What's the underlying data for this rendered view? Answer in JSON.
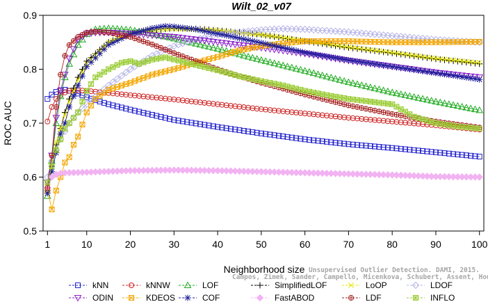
{
  "chart_data": {
    "type": "line",
    "title": "Wilt_02_v07",
    "xlabel": "Neighborhood size",
    "ylabel": "ROC AUC",
    "xlim": [
      0,
      101
    ],
    "ylim": [
      0.5,
      0.9
    ],
    "xticks": [
      1,
      10,
      20,
      30,
      40,
      50,
      60,
      70,
      80,
      90,
      100
    ],
    "yticks": [
      0.5,
      0.6,
      0.7,
      0.8,
      0.9
    ],
    "grid": false,
    "legend_placement": "bottom",
    "watermark": [
      "Campos, Zimek, Sander, Campello, Micenkova, Schubert, Assent, Houle",
      "Unsupervised Outlier Detection. DAMI, 2015."
    ],
    "series": [
      {
        "name": "kNN",
        "color": "#1f1fcc",
        "marker": "square",
        "points": [
          [
            1,
            0.745
          ],
          [
            2,
            0.753
          ],
          [
            3,
            0.758
          ],
          [
            4,
            0.761
          ],
          [
            5,
            0.762
          ],
          [
            6,
            0.76
          ],
          [
            8,
            0.755
          ],
          [
            10,
            0.748
          ],
          [
            15,
            0.735
          ],
          [
            20,
            0.725
          ],
          [
            30,
            0.706
          ],
          [
            40,
            0.693
          ],
          [
            50,
            0.681
          ],
          [
            60,
            0.67
          ],
          [
            70,
            0.661
          ],
          [
            80,
            0.654
          ],
          [
            90,
            0.646
          ],
          [
            100,
            0.638
          ]
        ]
      },
      {
        "name": "kNNW",
        "color": "#cc1f1f",
        "marker": "circle",
        "points": [
          [
            1,
            0.703
          ],
          [
            2,
            0.73
          ],
          [
            3,
            0.745
          ],
          [
            4,
            0.752
          ],
          [
            5,
            0.757
          ],
          [
            6,
            0.76
          ],
          [
            8,
            0.761
          ],
          [
            10,
            0.76
          ],
          [
            15,
            0.756
          ],
          [
            20,
            0.752
          ],
          [
            30,
            0.744
          ],
          [
            40,
            0.735
          ],
          [
            50,
            0.726
          ],
          [
            60,
            0.718
          ],
          [
            70,
            0.71
          ],
          [
            80,
            0.703
          ],
          [
            90,
            0.696
          ],
          [
            100,
            0.688
          ]
        ]
      },
      {
        "name": "LOF",
        "color": "#1faa1f",
        "marker": "triangle-up",
        "points": [
          [
            1,
            0.565
          ],
          [
            2,
            0.63
          ],
          [
            3,
            0.7
          ],
          [
            4,
            0.75
          ],
          [
            5,
            0.785
          ],
          [
            6,
            0.81
          ],
          [
            8,
            0.845
          ],
          [
            10,
            0.865
          ],
          [
            12,
            0.874
          ],
          [
            15,
            0.876
          ],
          [
            20,
            0.873
          ],
          [
            25,
            0.866
          ],
          [
            30,
            0.857
          ],
          [
            40,
            0.838
          ],
          [
            50,
            0.817
          ],
          [
            60,
            0.797
          ],
          [
            70,
            0.776
          ],
          [
            80,
            0.757
          ],
          [
            90,
            0.74
          ],
          [
            100,
            0.724
          ]
        ]
      },
      {
        "name": "SimplifiedLOF",
        "color": "#000000",
        "marker": "plus",
        "points": [
          [
            1,
            0.575
          ],
          [
            2,
            0.62
          ],
          [
            3,
            0.66
          ],
          [
            4,
            0.69
          ],
          [
            5,
            0.72
          ],
          [
            6,
            0.745
          ],
          [
            8,
            0.785
          ],
          [
            10,
            0.815
          ],
          [
            15,
            0.85
          ],
          [
            20,
            0.866
          ],
          [
            25,
            0.873
          ],
          [
            30,
            0.876
          ],
          [
            35,
            0.875
          ],
          [
            40,
            0.872
          ],
          [
            50,
            0.864
          ],
          [
            60,
            0.852
          ],
          [
            70,
            0.84
          ],
          [
            80,
            0.83
          ],
          [
            90,
            0.819
          ],
          [
            100,
            0.81
          ]
        ]
      },
      {
        "name": "LoOP",
        "color": "#e6e600",
        "marker": "cross",
        "points": [
          [
            1,
            0.58
          ],
          [
            2,
            0.63
          ],
          [
            3,
            0.665
          ],
          [
            4,
            0.69
          ],
          [
            6,
            0.74
          ],
          [
            8,
            0.78
          ],
          [
            10,
            0.81
          ],
          [
            15,
            0.85
          ],
          [
            20,
            0.866
          ],
          [
            25,
            0.873
          ],
          [
            30,
            0.875
          ],
          [
            40,
            0.872
          ],
          [
            50,
            0.864
          ],
          [
            60,
            0.853
          ],
          [
            70,
            0.841
          ],
          [
            80,
            0.831
          ],
          [
            90,
            0.82
          ],
          [
            100,
            0.812
          ]
        ]
      },
      {
        "name": "LDOF",
        "color": "#b3b3e6",
        "marker": "diamond",
        "points": [
          [
            1,
            0.6
          ],
          [
            2,
            0.63
          ],
          [
            3,
            0.65
          ],
          [
            4,
            0.67
          ],
          [
            6,
            0.7
          ],
          [
            8,
            0.72
          ],
          [
            10,
            0.735
          ],
          [
            15,
            0.77
          ],
          [
            20,
            0.8
          ],
          [
            25,
            0.825
          ],
          [
            30,
            0.843
          ],
          [
            35,
            0.855
          ],
          [
            40,
            0.864
          ],
          [
            45,
            0.869
          ],
          [
            50,
            0.873
          ],
          [
            55,
            0.875
          ],
          [
            60,
            0.874
          ],
          [
            70,
            0.869
          ],
          [
            80,
            0.862
          ],
          [
            90,
            0.855
          ],
          [
            100,
            0.85
          ]
        ]
      },
      {
        "name": "ODIN",
        "color": "#8a1fcc",
        "marker": "triangle-down",
        "points": [
          [
            1,
            0.59
          ],
          [
            2,
            0.64
          ],
          [
            3,
            0.71
          ],
          [
            4,
            0.76
          ],
          [
            5,
            0.79
          ],
          [
            6,
            0.82
          ],
          [
            8,
            0.855
          ],
          [
            10,
            0.866
          ],
          [
            12,
            0.868
          ],
          [
            15,
            0.868
          ],
          [
            20,
            0.866
          ],
          [
            30,
            0.86
          ],
          [
            40,
            0.85
          ],
          [
            50,
            0.84
          ],
          [
            60,
            0.829
          ],
          [
            70,
            0.816
          ],
          [
            80,
            0.805
          ],
          [
            90,
            0.794
          ],
          [
            100,
            0.785
          ]
        ]
      },
      {
        "name": "KDEOS",
        "color": "#f2a600",
        "marker": "square-x",
        "points": [
          [
            1,
            0.575
          ],
          [
            2,
            0.54
          ],
          [
            3,
            0.575
          ],
          [
            4,
            0.6
          ],
          [
            5,
            0.627
          ],
          [
            6,
            0.637
          ],
          [
            7,
            0.66
          ],
          [
            8,
            0.675
          ],
          [
            10,
            0.72
          ],
          [
            12,
            0.745
          ],
          [
            15,
            0.762
          ],
          [
            20,
            0.775
          ],
          [
            25,
            0.79
          ],
          [
            30,
            0.8
          ],
          [
            35,
            0.812
          ],
          [
            40,
            0.823
          ],
          [
            45,
            0.835
          ],
          [
            50,
            0.843
          ],
          [
            55,
            0.848
          ],
          [
            60,
            0.852
          ],
          [
            70,
            0.852
          ],
          [
            80,
            0.85
          ],
          [
            90,
            0.85
          ],
          [
            100,
            0.851
          ]
        ]
      },
      {
        "name": "COF",
        "color": "#1f1f99",
        "marker": "asterisk",
        "points": [
          [
            1,
            0.57
          ],
          [
            2,
            0.61
          ],
          [
            3,
            0.645
          ],
          [
            4,
            0.68
          ],
          [
            5,
            0.7
          ],
          [
            6,
            0.73
          ],
          [
            8,
            0.77
          ],
          [
            10,
            0.805
          ],
          [
            15,
            0.845
          ],
          [
            20,
            0.865
          ],
          [
            25,
            0.876
          ],
          [
            28,
            0.88
          ],
          [
            30,
            0.879
          ],
          [
            35,
            0.874
          ],
          [
            40,
            0.866
          ],
          [
            50,
            0.849
          ],
          [
            60,
            0.831
          ],
          [
            70,
            0.817
          ],
          [
            80,
            0.805
          ],
          [
            90,
            0.793
          ],
          [
            100,
            0.781
          ]
        ]
      },
      {
        "name": "FastABOD",
        "color": "#f2b3f2",
        "marker": "diamond-filled",
        "points": [
          [
            1,
            0.58
          ],
          [
            2,
            0.6
          ],
          [
            3,
            0.605
          ],
          [
            4,
            0.607
          ],
          [
            5,
            0.608
          ],
          [
            10,
            0.609
          ],
          [
            20,
            0.612
          ],
          [
            30,
            0.613
          ],
          [
            40,
            0.612
          ],
          [
            50,
            0.61
          ],
          [
            60,
            0.608
          ],
          [
            70,
            0.606
          ],
          [
            80,
            0.604
          ],
          [
            90,
            0.601
          ],
          [
            100,
            0.6
          ]
        ]
      },
      {
        "name": "LDF",
        "color": "#a61f1f",
        "marker": "circle-plus",
        "points": [
          [
            1,
            0.58
          ],
          [
            2,
            0.64
          ],
          [
            3,
            0.73
          ],
          [
            4,
            0.79
          ],
          [
            5,
            0.825
          ],
          [
            6,
            0.845
          ],
          [
            8,
            0.86
          ],
          [
            10,
            0.868
          ],
          [
            12,
            0.87
          ],
          [
            15,
            0.868
          ],
          [
            20,
            0.86
          ],
          [
            25,
            0.846
          ],
          [
            30,
            0.83
          ],
          [
            35,
            0.815
          ],
          [
            40,
            0.8
          ],
          [
            45,
            0.787
          ],
          [
            50,
            0.775
          ],
          [
            60,
            0.753
          ],
          [
            70,
            0.733
          ],
          [
            80,
            0.717
          ],
          [
            90,
            0.703
          ],
          [
            100,
            0.692
          ]
        ]
      },
      {
        "name": "INFLO",
        "color": "#99cc33",
        "marker": "star-box",
        "points": [
          [
            1,
            0.59
          ],
          [
            2,
            0.62
          ],
          [
            3,
            0.65
          ],
          [
            4,
            0.67
          ],
          [
            5,
            0.69
          ],
          [
            6,
            0.7
          ],
          [
            8,
            0.72
          ],
          [
            10,
            0.76
          ],
          [
            12,
            0.785
          ],
          [
            15,
            0.8
          ],
          [
            18,
            0.812
          ],
          [
            20,
            0.815
          ],
          [
            22,
            0.81
          ],
          [
            25,
            0.818
          ],
          [
            28,
            0.822
          ],
          [
            30,
            0.818
          ],
          [
            35,
            0.808
          ],
          [
            40,
            0.798
          ],
          [
            45,
            0.787
          ],
          [
            50,
            0.778
          ],
          [
            55,
            0.77
          ],
          [
            60,
            0.76
          ],
          [
            65,
            0.752
          ],
          [
            70,
            0.745
          ],
          [
            75,
            0.74
          ],
          [
            80,
            0.735
          ],
          [
            85,
            0.712
          ],
          [
            90,
            0.7
          ],
          [
            95,
            0.694
          ],
          [
            100,
            0.69
          ]
        ]
      }
    ]
  }
}
